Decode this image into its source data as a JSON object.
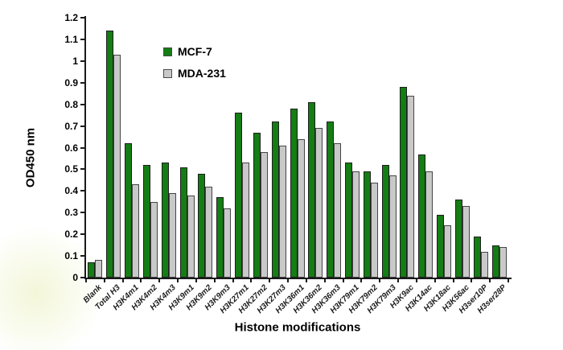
{
  "figure": {
    "background": "#ffffff",
    "accent_green": "#147d14",
    "accent_gray": "#c9c9c9"
  },
  "chart_data": {
    "type": "bar",
    "title": "",
    "xlabel": "Histone modifications",
    "ylabel": "OD450 nm",
    "ylim": [
      0,
      1.2
    ],
    "grid": false,
    "legend_position": "upper-left-inside",
    "yticks": [
      0,
      0.1,
      0.2,
      0.3,
      0.4,
      0.5,
      0.6,
      0.7,
      0.8,
      0.9,
      1,
      1.1,
      1.2
    ],
    "ytick_labels": [
      "0",
      "0.1",
      "0.2",
      "0.3",
      "0.4",
      "0.5",
      "0.6",
      "0.7",
      "0.8",
      "0.9",
      "1",
      "1.1",
      "1.2"
    ],
    "categories": [
      "Blank",
      "Total H3",
      "H3K4m1",
      "H3K4m2",
      "H3K4m3",
      "H3K9m1",
      "H3K9m2",
      "H3K9m3",
      "H3K27m1",
      "H3K27m2",
      "H3K27m3",
      "H3K36m1",
      "H3K36m2",
      "H3K36m3",
      "H3K79m1",
      "H3K79m2",
      "H3K79m3",
      "H3K9ac",
      "H3K14ac",
      "H3K18ac",
      "H3K56ac",
      "H3ser10P",
      "H3ser28P"
    ],
    "series": [
      {
        "name": "MCF-7",
        "color": "#147d14",
        "border_color": "#1f1f1f",
        "values": [
          0.07,
          1.14,
          0.62,
          0.52,
          0.53,
          0.51,
          0.48,
          0.37,
          0.76,
          0.67,
          0.72,
          0.78,
          0.81,
          0.72,
          0.53,
          0.49,
          0.52,
          0.88,
          0.57,
          0.29,
          0.36,
          0.19,
          0.15
        ]
      },
      {
        "name": "MDA-231",
        "color": "#c9c9c9",
        "border_color": "#454545",
        "values": [
          0.08,
          1.03,
          0.43,
          0.35,
          0.39,
          0.38,
          0.42,
          0.32,
          0.53,
          0.58,
          0.61,
          0.64,
          0.69,
          0.62,
          0.49,
          0.44,
          0.47,
          0.84,
          0.49,
          0.24,
          0.33,
          0.12,
          0.14
        ]
      }
    ]
  }
}
